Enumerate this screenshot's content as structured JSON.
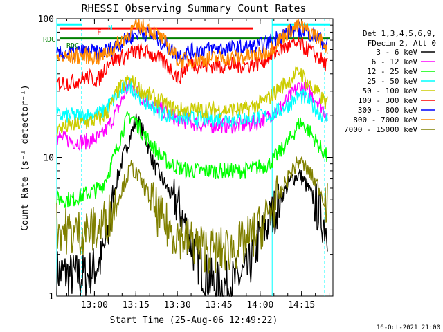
{
  "chart_data": {
    "type": "line",
    "title": "RHESSI Observing Summary Count Rates",
    "xlabel": "Start Time (25-Aug-06 12:49:22)",
    "ylabel": "Count Rate (s⁻¹ detector⁻¹)",
    "x_unit": "minutes since 12:49:22",
    "xlim": [
      -3,
      97
    ],
    "ylim": [
      1,
      100
    ],
    "y_scale": "log",
    "x_ticks": [
      {
        "x": 10.64,
        "label": "13:00"
      },
      {
        "x": 25.64,
        "label": "13:15"
      },
      {
        "x": 40.64,
        "label": "13:30"
      },
      {
        "x": 55.64,
        "label": "13:45"
      },
      {
        "x": 70.64,
        "label": "14:00"
      },
      {
        "x": 85.64,
        "label": "14:15"
      }
    ],
    "y_ticks": [
      {
        "y": 1,
        "label": "1"
      },
      {
        "y": 10,
        "label": "10"
      },
      {
        "y": 100,
        "label": "100"
      }
    ],
    "legend_header": [
      "Det 1,3,4,5,6,9,",
      "FDecim 2, Att 0"
    ],
    "legend_position": "right",
    "grid": false,
    "series": [
      {
        "name": "3 - 6 keV",
        "color": "#000000",
        "points": [
          [
            -3,
            1.5
          ],
          [
            3,
            1.4
          ],
          [
            8,
            1.4
          ],
          [
            13,
            1.8
          ],
          [
            16,
            3
          ],
          [
            18,
            6
          ],
          [
            21,
            10
          ],
          [
            24,
            15
          ],
          [
            26,
            19
          ],
          [
            29,
            14
          ],
          [
            32,
            9
          ],
          [
            35,
            7
          ],
          [
            38,
            5.5
          ],
          [
            41,
            4.5
          ],
          [
            44,
            3
          ],
          [
            47,
            2
          ],
          [
            50,
            1.5
          ],
          [
            54,
            1.2
          ],
          [
            58,
            1.2
          ],
          [
            62,
            1.3
          ],
          [
            66,
            1.5
          ],
          [
            70,
            2.5
          ],
          [
            74,
            3.5
          ],
          [
            78,
            5
          ],
          [
            82,
            7
          ],
          [
            85,
            7.5
          ],
          [
            88,
            6
          ],
          [
            92,
            4
          ],
          [
            95,
            3
          ]
        ]
      },
      {
        "name": "6 - 12 keV",
        "color": "#ff00ff",
        "points": [
          [
            -3,
            14
          ],
          [
            3,
            13
          ],
          [
            8,
            13
          ],
          [
            13,
            14
          ],
          [
            16,
            17
          ],
          [
            19,
            22
          ],
          [
            21,
            27
          ],
          [
            23,
            33
          ],
          [
            25,
            31
          ],
          [
            28,
            27
          ],
          [
            32,
            24
          ],
          [
            35,
            22
          ],
          [
            38,
            20
          ],
          [
            41,
            19
          ],
          [
            45,
            18
          ],
          [
            50,
            17
          ],
          [
            55,
            17
          ],
          [
            60,
            17
          ],
          [
            65,
            17
          ],
          [
            70,
            18
          ],
          [
            74,
            20
          ],
          [
            78,
            23
          ],
          [
            82,
            28
          ],
          [
            85,
            33
          ],
          [
            88,
            30
          ],
          [
            92,
            25
          ],
          [
            95,
            20
          ]
        ]
      },
      {
        "name": "12 - 25 keV",
        "color": "#00ff00",
        "points": [
          [
            -3,
            5
          ],
          [
            3,
            5
          ],
          [
            8,
            5.5
          ],
          [
            13,
            6
          ],
          [
            16,
            8
          ],
          [
            19,
            12
          ],
          [
            21,
            16
          ],
          [
            23,
            20
          ],
          [
            25,
            19
          ],
          [
            28,
            15
          ],
          [
            32,
            12
          ],
          [
            35,
            10
          ],
          [
            38,
            9
          ],
          [
            41,
            8.5
          ],
          [
            45,
            8
          ],
          [
            50,
            8
          ],
          [
            55,
            8
          ],
          [
            60,
            8
          ],
          [
            65,
            8
          ],
          [
            70,
            8.5
          ],
          [
            74,
            9
          ],
          [
            78,
            11
          ],
          [
            82,
            14
          ],
          [
            85,
            18
          ],
          [
            88,
            16
          ],
          [
            92,
            12
          ],
          [
            95,
            10
          ]
        ]
      },
      {
        "name": "25 - 50 keV",
        "color": "#00ffff",
        "points": [
          [
            -3,
            20
          ],
          [
            3,
            20
          ],
          [
            8,
            20
          ],
          [
            13,
            21
          ],
          [
            16,
            24
          ],
          [
            19,
            28
          ],
          [
            21,
            31
          ],
          [
            23,
            34
          ],
          [
            25,
            31
          ],
          [
            28,
            26
          ],
          [
            32,
            23
          ],
          [
            35,
            21
          ],
          [
            38,
            20
          ],
          [
            41,
            19.5
          ],
          [
            45,
            19
          ],
          [
            50,
            19
          ],
          [
            55,
            19
          ],
          [
            60,
            19
          ],
          [
            65,
            19
          ],
          [
            70,
            19.5
          ],
          [
            74,
            20
          ],
          [
            78,
            22
          ],
          [
            82,
            25
          ],
          [
            85,
            28
          ],
          [
            88,
            26
          ],
          [
            92,
            21
          ],
          [
            95,
            19
          ]
        ]
      },
      {
        "name": "50 - 100 keV",
        "color": "#cccc00",
        "points": [
          [
            -3,
            16
          ],
          [
            3,
            17
          ],
          [
            8,
            18
          ],
          [
            13,
            19
          ],
          [
            16,
            22
          ],
          [
            19,
            30
          ],
          [
            21,
            33
          ],
          [
            23,
            36
          ],
          [
            25,
            34
          ],
          [
            28,
            30
          ],
          [
            32,
            27
          ],
          [
            35,
            25
          ],
          [
            38,
            23
          ],
          [
            41,
            22
          ],
          [
            45,
            22
          ],
          [
            50,
            22
          ],
          [
            55,
            22
          ],
          [
            60,
            22
          ],
          [
            65,
            22
          ],
          [
            70,
            24
          ],
          [
            74,
            27
          ],
          [
            78,
            32
          ],
          [
            82,
            37
          ],
          [
            85,
            42
          ],
          [
            88,
            34
          ],
          [
            92,
            28
          ],
          [
            95,
            24
          ]
        ]
      },
      {
        "name": "100 - 300 keV",
        "color": "#ff0000",
        "points": [
          [
            -3,
            34
          ],
          [
            3,
            35
          ],
          [
            8,
            38
          ],
          [
            12,
            36
          ],
          [
            16,
            50
          ],
          [
            20,
            52
          ],
          [
            24,
            57
          ],
          [
            27,
            58
          ],
          [
            30,
            57
          ],
          [
            33,
            53
          ],
          [
            36,
            48
          ],
          [
            39,
            42
          ],
          [
            41,
            37
          ],
          [
            45,
            48
          ],
          [
            50,
            46
          ],
          [
            55,
            46
          ],
          [
            60,
            46
          ],
          [
            65,
            46
          ],
          [
            70,
            48
          ],
          [
            74,
            53
          ],
          [
            78,
            60
          ],
          [
            82,
            64
          ],
          [
            85,
            65
          ],
          [
            88,
            60
          ],
          [
            92,
            52
          ],
          [
            95,
            46
          ]
        ]
      },
      {
        "name": "300 - 800 keV",
        "color": "#0000ff",
        "points": [
          [
            -3,
            55
          ],
          [
            3,
            57
          ],
          [
            8,
            58
          ],
          [
            12,
            56
          ],
          [
            16,
            60
          ],
          [
            20,
            66
          ],
          [
            24,
            75
          ],
          [
            27,
            80
          ],
          [
            30,
            78
          ],
          [
            33,
            72
          ],
          [
            36,
            66
          ],
          [
            39,
            58
          ],
          [
            41,
            54
          ],
          [
            45,
            58
          ],
          [
            50,
            60
          ],
          [
            55,
            61
          ],
          [
            60,
            61
          ],
          [
            65,
            62
          ],
          [
            70,
            63
          ],
          [
            74,
            68
          ],
          [
            78,
            76
          ],
          [
            82,
            82
          ],
          [
            85,
            84
          ],
          [
            88,
            80
          ],
          [
            92,
            72
          ],
          [
            95,
            64
          ]
        ]
      },
      {
        "name": "800 - 7000 keV",
        "color": "#ff8800",
        "points": [
          [
            -3,
            52
          ],
          [
            3,
            53
          ],
          [
            8,
            54
          ],
          [
            12,
            52
          ],
          [
            16,
            58
          ],
          [
            20,
            68
          ],
          [
            24,
            82
          ],
          [
            27,
            88
          ],
          [
            30,
            86
          ],
          [
            33,
            78
          ],
          [
            36,
            68
          ],
          [
            39,
            58
          ],
          [
            41,
            50
          ],
          [
            45,
            50
          ],
          [
            50,
            51
          ],
          [
            55,
            52
          ],
          [
            60,
            52
          ],
          [
            65,
            53
          ],
          [
            70,
            54
          ],
          [
            74,
            60
          ],
          [
            78,
            72
          ],
          [
            82,
            84
          ],
          [
            85,
            88
          ],
          [
            88,
            82
          ],
          [
            92,
            72
          ],
          [
            95,
            62
          ]
        ]
      },
      {
        "name": "7000 - 15000 keV",
        "color": "#808000",
        "points": [
          [
            -3,
            3.2
          ],
          [
            3,
            2.8
          ],
          [
            8,
            3
          ],
          [
            12,
            3
          ],
          [
            16,
            3.8
          ],
          [
            19,
            5
          ],
          [
            22,
            7
          ],
          [
            24,
            8.5
          ],
          [
            26,
            7.5
          ],
          [
            29,
            6
          ],
          [
            32,
            4.5
          ],
          [
            35,
            3.5
          ],
          [
            38,
            3
          ],
          [
            41,
            2.8
          ],
          [
            45,
            2.5
          ],
          [
            50,
            2.2
          ],
          [
            55,
            2.1
          ],
          [
            60,
            2.2
          ],
          [
            65,
            2.4
          ],
          [
            70,
            3
          ],
          [
            74,
            4
          ],
          [
            78,
            5.5
          ],
          [
            82,
            8
          ],
          [
            85,
            9.5
          ],
          [
            88,
            8
          ],
          [
            92,
            6
          ],
          [
            95,
            4.5
          ]
        ]
      }
    ],
    "annotations": {
      "footer_date": "16-Oct-2021 21:00",
      "attenuator_label": "F",
      "night_label": "N",
      "rdc_left_label": "RDC",
      "rdc_label": "RDC"
    },
    "markers": {
      "solid_vlines_x": [
        -3,
        75
      ],
      "dashed_vlines_x": [
        6,
        94
      ],
      "flare_bar": {
        "x": [
          -2,
          68
        ],
        "y": 85,
        "color": "#ff0000"
      },
      "night_bar": {
        "x": [
          -3,
          6
        ],
        "y": 91,
        "color": "#00ffff"
      },
      "night_bar_2": {
        "x": [
          75,
          96
        ],
        "y": 91,
        "color": "#00ffff"
      },
      "rdc_bar": {
        "x": [
          -2,
          96
        ],
        "y": 72,
        "color": "#008000"
      }
    }
  }
}
